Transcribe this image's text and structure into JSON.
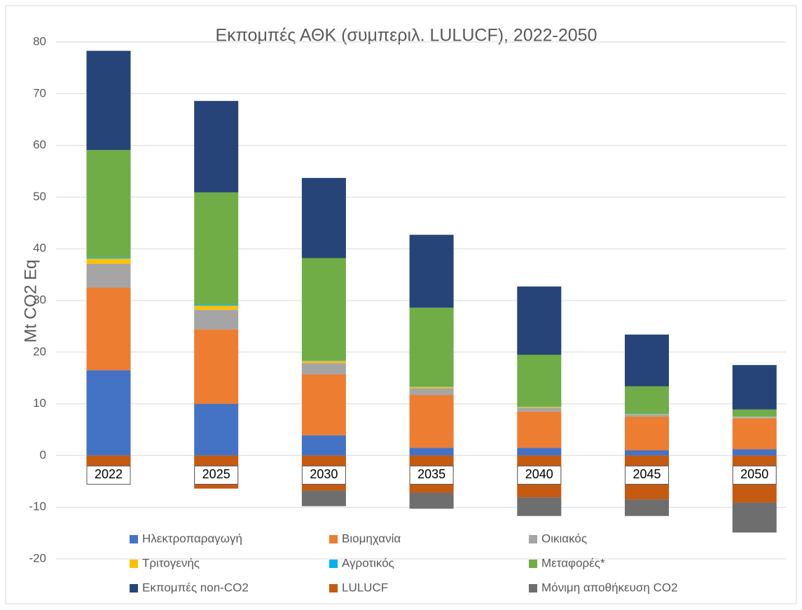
{
  "chart_data": {
    "type": "bar",
    "stacked": true,
    "title": "Εκπομπές ΑΘΚ (συμπεριλ. LULUCF), 2022-2050",
    "y_label": "Mt CO2 Eq",
    "categories": [
      "2022",
      "2025",
      "2030",
      "2035",
      "2040",
      "2045",
      "2050"
    ],
    "series": [
      {
        "name": "Ηλεκτροπαραγωγή",
        "color": "#4472c4",
        "values": [
          16.5,
          10.0,
          3.9,
          1.5,
          1.5,
          1.0,
          1.2
        ]
      },
      {
        "name": "Βιομηχανία",
        "color": "#ed7d31",
        "values": [
          16.0,
          14.4,
          11.8,
          10.2,
          7.0,
          6.5,
          6.0
        ]
      },
      {
        "name": "Οικιακός",
        "color": "#a5a5a5",
        "values": [
          4.6,
          3.8,
          2.2,
          1.3,
          0.7,
          0.4,
          0.2
        ]
      },
      {
        "name": "Τριτογενής",
        "color": "#ffc000",
        "values": [
          1.0,
          0.8,
          0.4,
          0.3,
          0.2,
          0.1,
          0.1
        ]
      },
      {
        "name": "Αγροτικός",
        "color": "#00b0f0",
        "values": [
          0.2,
          0.2,
          0.1,
          0.1,
          0.1,
          0.1,
          0.1
        ]
      },
      {
        "name": "Μεταφορές*",
        "color": "#70ad47",
        "values": [
          20.8,
          21.7,
          19.8,
          15.2,
          10.0,
          5.3,
          1.3
        ]
      },
      {
        "name": "Εκπομπές non-CO2",
        "color": "#264478",
        "values": [
          19.2,
          17.7,
          15.5,
          14.1,
          13.2,
          10.0,
          8.6
        ]
      },
      {
        "name": "LULUCF",
        "color": "#c55a11",
        "values": [
          -5.4,
          -6.4,
          -6.8,
          -7.2,
          -8.1,
          -8.5,
          -9.1
        ]
      },
      {
        "name": "Μόνιμη αποθήκευση CO2",
        "color": "#6e6e6e",
        "values": [
          0,
          0,
          -3.0,
          -3.1,
          -3.6,
          -3.2,
          -5.8
        ]
      }
    ],
    "ylim": [
      -20,
      80
    ],
    "yticks": [
      -20,
      -10,
      0,
      10,
      20,
      30,
      40,
      50,
      60,
      70,
      80
    ],
    "grid": true,
    "legend": "bottom"
  }
}
